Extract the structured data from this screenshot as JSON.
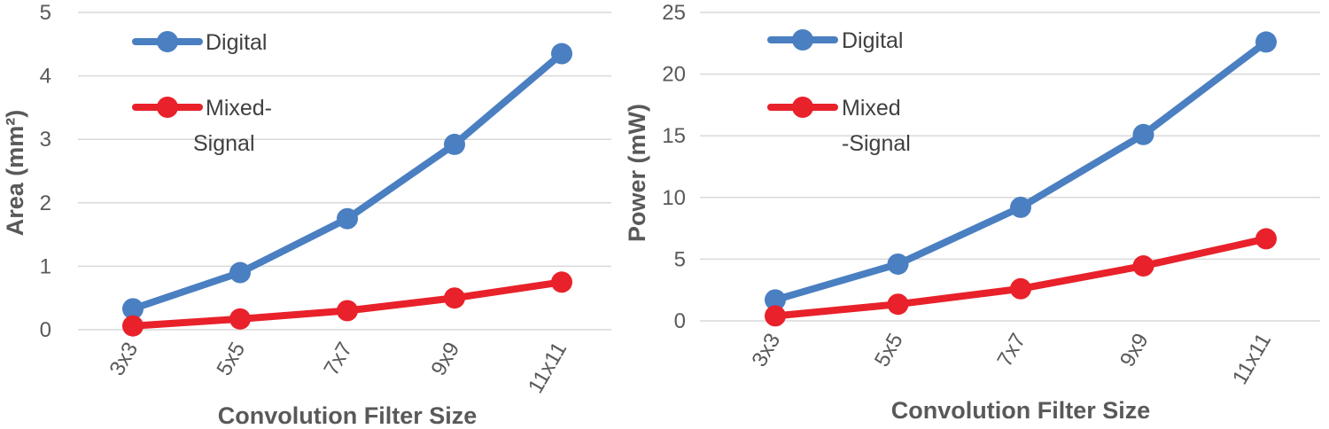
{
  "chart_data": [
    {
      "type": "line",
      "categories": [
        "3x3",
        "5x5",
        "7x7",
        "9x9",
        "11x11"
      ],
      "series": [
        {
          "name": "Digital",
          "color": "#4a7fc1",
          "values": [
            0.33,
            0.9,
            1.75,
            2.92,
            4.35
          ]
        },
        {
          "name": "Mixed-Signal",
          "legend_lines": [
            "Mixed-",
            "Signal"
          ],
          "color": "#e8212a",
          "values": [
            0.06,
            0.17,
            0.3,
            0.5,
            0.75
          ]
        }
      ],
      "ylabel": "Area (mm²)",
      "xlabel": "Convolution Filter Size",
      "ylim": [
        0,
        5
      ],
      "yticks": [
        0,
        1,
        2,
        3,
        4,
        5
      ],
      "grid": true,
      "legend": "top-left"
    },
    {
      "type": "line",
      "categories": [
        "3x3",
        "5x5",
        "7x7",
        "9x9",
        "11x11"
      ],
      "series": [
        {
          "name": "Digital",
          "color": "#4a7fc1",
          "values": [
            1.7,
            4.6,
            9.2,
            15.1,
            22.6
          ]
        },
        {
          "name": "Mixed-Signal",
          "legend_lines": [
            "Mixed",
            "-Signal"
          ],
          "color": "#e8212a",
          "values": [
            0.4,
            1.35,
            2.6,
            4.45,
            6.65
          ]
        }
      ],
      "ylabel": "Power (mW)",
      "xlabel": "Convolution Filter Size",
      "ylim": [
        0,
        25
      ],
      "yticks": [
        0,
        5,
        10,
        15,
        20,
        25
      ],
      "grid": true,
      "legend": "top-left"
    }
  ]
}
